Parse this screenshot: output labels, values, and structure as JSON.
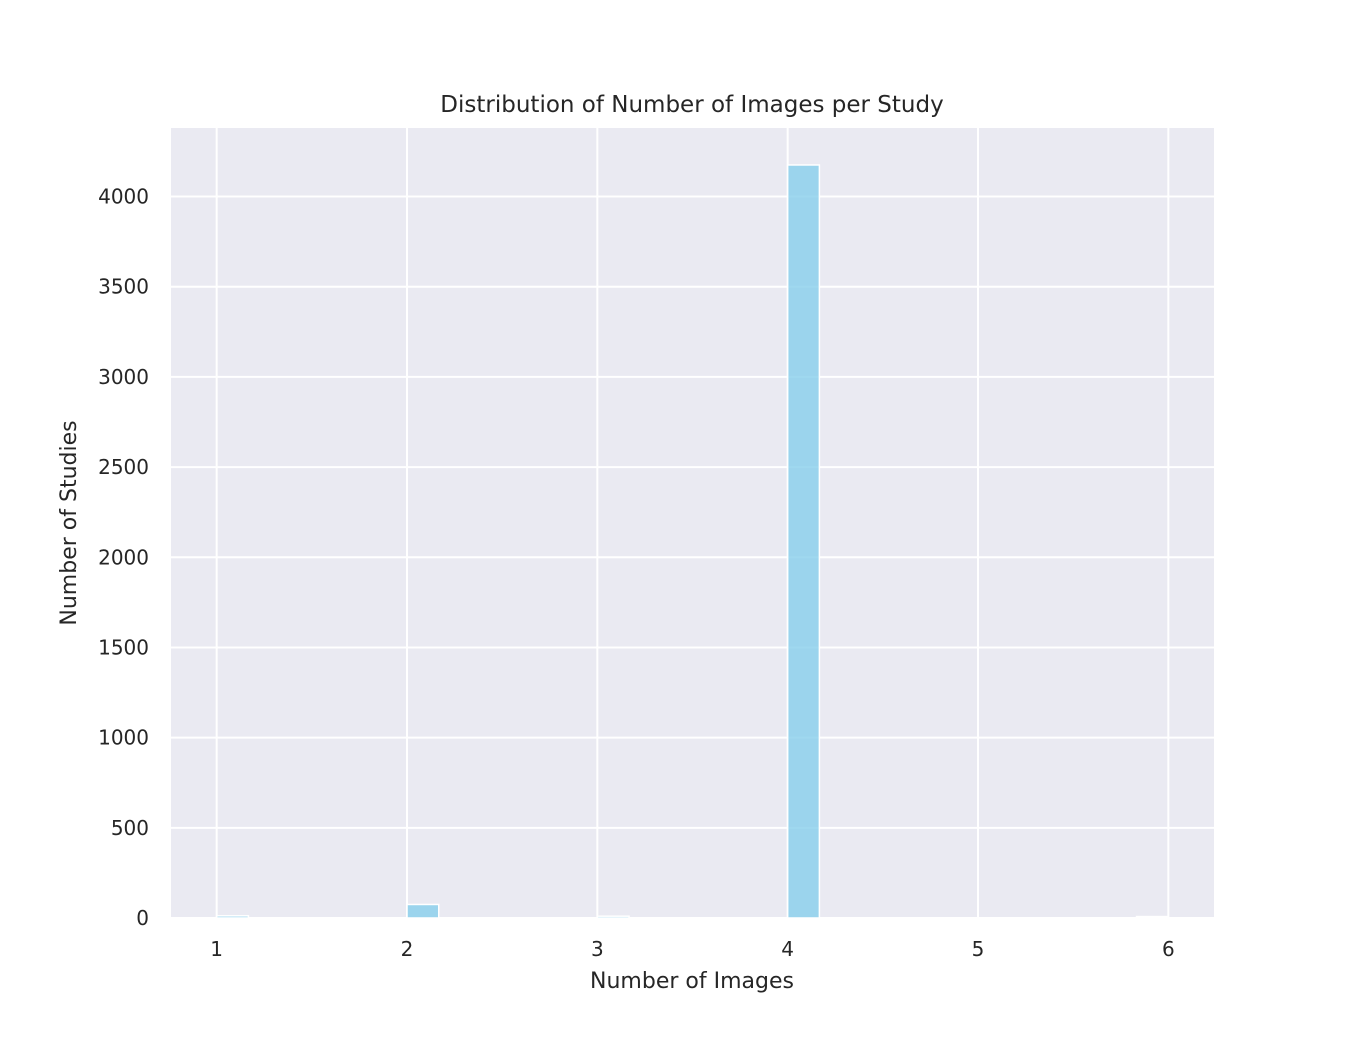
{
  "chart_data": {
    "type": "bar",
    "title": "Distribution of Number of Images per Study",
    "xlabel": "Number of Images",
    "ylabel": "Number of Studies",
    "xlim": [
      0.76,
      6.24
    ],
    "ylim": [
      0,
      4380
    ],
    "xticks": [
      1,
      2,
      3,
      4,
      5,
      6
    ],
    "yticks": [
      0,
      500,
      1000,
      1500,
      2000,
      2500,
      3000,
      3500,
      4000
    ],
    "bin_width": 0.1667,
    "bins": [
      {
        "x_start": 1.0,
        "value": 12
      },
      {
        "x_start": 2.0,
        "value": 75
      },
      {
        "x_start": 3.0,
        "value": 10
      },
      {
        "x_start": 4.0,
        "value": 4175
      },
      {
        "x_start": 5.833,
        "value": 8
      }
    ],
    "grid": true,
    "colors": {
      "bar": "#87ceeb",
      "plot_background": "#eaeaf2",
      "grid": "#ffffff"
    }
  }
}
